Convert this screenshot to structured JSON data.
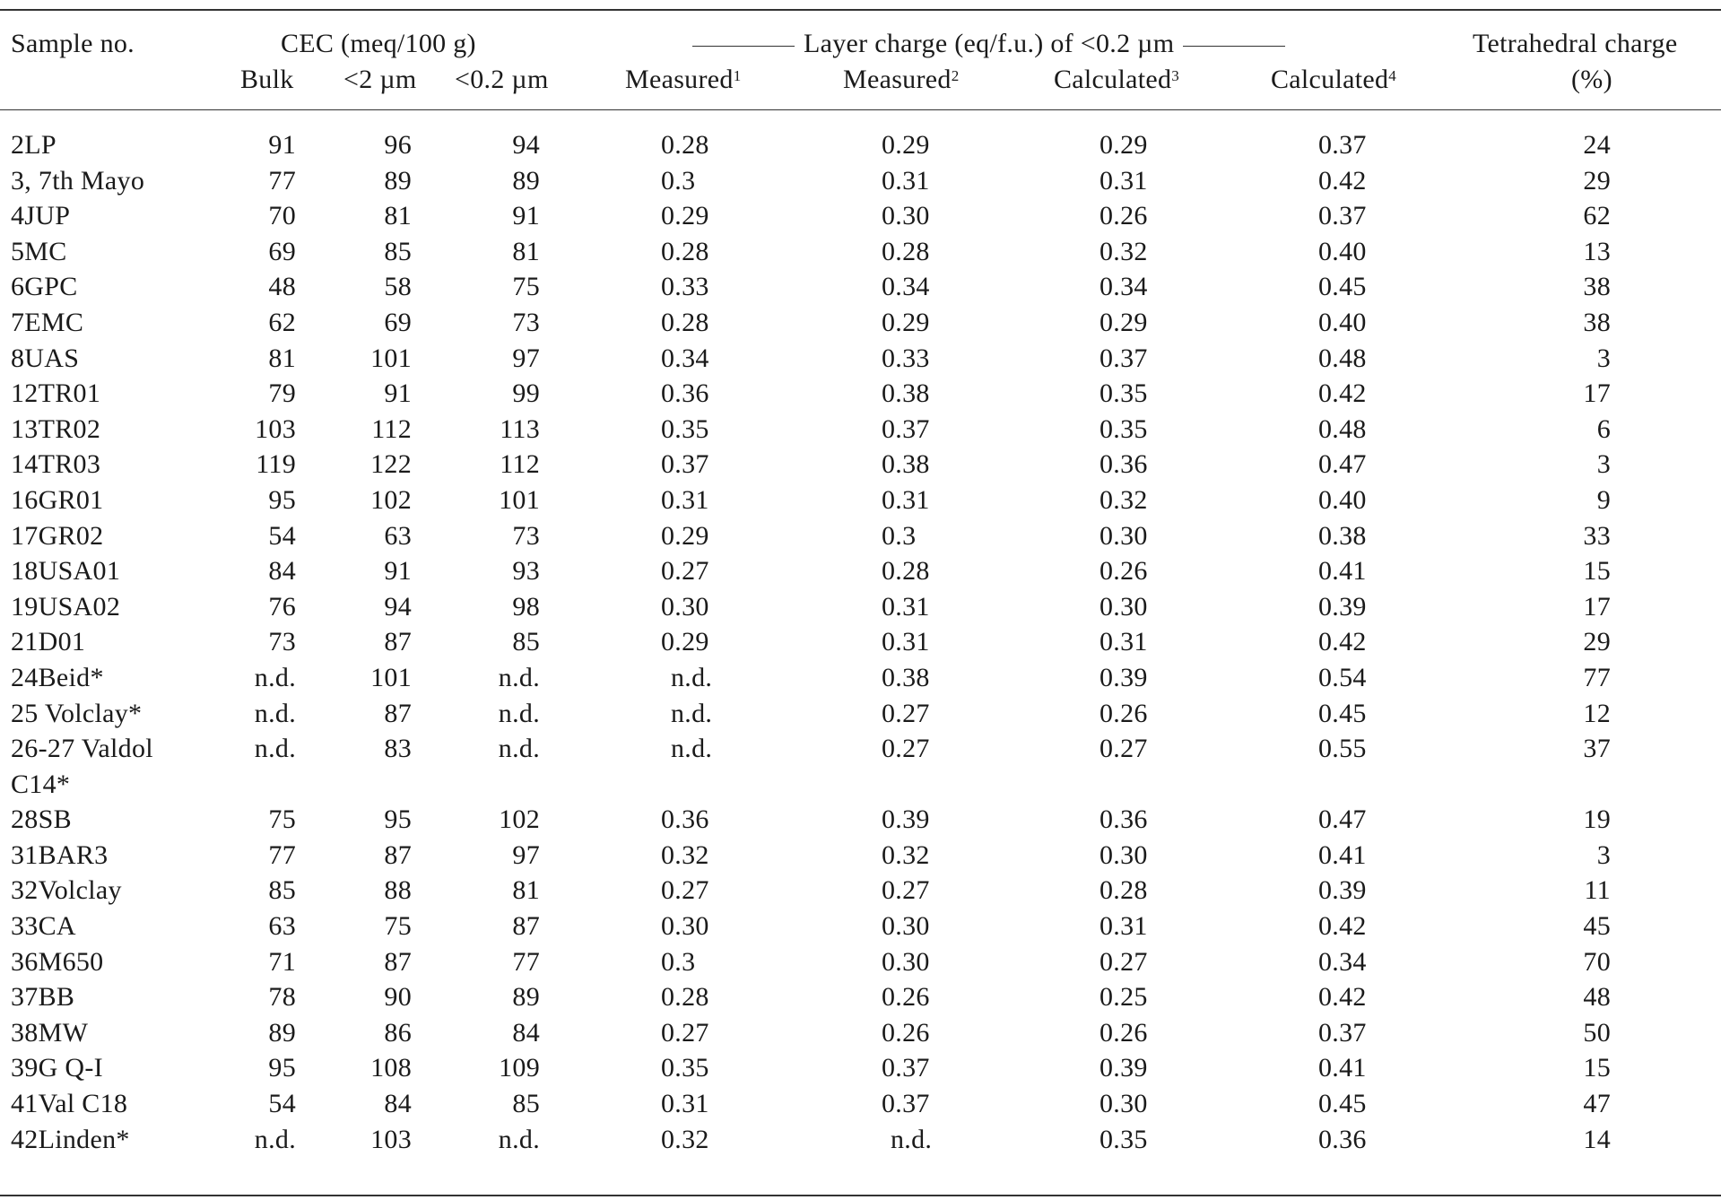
{
  "header": {
    "sample": "Sample no.",
    "cec_group": "CEC (meq/100 g)",
    "bulk": "Bulk",
    "lt2": "<2 µm",
    "lt02": "<0.2 µm",
    "layer_group": "Layer charge (eq/f.u.) of <0.2 µm",
    "measured": "Measured",
    "calculated": "Calculated",
    "sup1": "1",
    "sup2": "2",
    "sup3": "3",
    "sup4": "4",
    "tet1": "Tetrahedral charge",
    "tet2": "(%)"
  },
  "rows": [
    [
      "2LP",
      "91",
      "96",
      "94",
      "0.28",
      "0.29",
      "0.29",
      "0.37",
      "24"
    ],
    [
      "3, 7th Mayo",
      "77",
      "89",
      "89",
      "0.3",
      "0.31",
      "0.31",
      "0.42",
      "29"
    ],
    [
      "4JUP",
      "70",
      "81",
      "91",
      "0.29",
      "0.30",
      "0.26",
      "0.37",
      "62"
    ],
    [
      "5MC",
      "69",
      "85",
      "81",
      "0.28",
      "0.28",
      "0.32",
      "0.40",
      "13"
    ],
    [
      "6GPC",
      "48",
      "58",
      "75",
      "0.33",
      "0.34",
      "0.34",
      "0.45",
      "38"
    ],
    [
      "7EMC",
      "62",
      "69",
      "73",
      "0.28",
      "0.29",
      "0.29",
      "0.40",
      "38"
    ],
    [
      "8UAS",
      "81",
      "101",
      "97",
      "0.34",
      "0.33",
      "0.37",
      "0.48",
      "3"
    ],
    [
      "12TR01",
      "79",
      "91",
      "99",
      "0.36",
      "0.38",
      "0.35",
      "0.42",
      "17"
    ],
    [
      "13TR02",
      "103",
      "112",
      "113",
      "0.35",
      "0.37",
      "0.35",
      "0.48",
      "6"
    ],
    [
      "14TR03",
      "119",
      "122",
      "112",
      "0.37",
      "0.38",
      "0.36",
      "0.47",
      "3"
    ],
    [
      "16GR01",
      "95",
      "102",
      "101",
      "0.31",
      "0.31",
      "0.32",
      "0.40",
      "9"
    ],
    [
      "17GR02",
      "54",
      "63",
      "73",
      "0.29",
      "0.3",
      "0.30",
      "0.38",
      "33"
    ],
    [
      "18USA01",
      "84",
      "91",
      "93",
      "0.27",
      "0.28",
      "0.26",
      "0.41",
      "15"
    ],
    [
      "19USA02",
      "76",
      "94",
      "98",
      "0.30",
      "0.31",
      "0.30",
      "0.39",
      "17"
    ],
    [
      "21D01",
      "73",
      "87",
      "85",
      "0.29",
      "0.31",
      "0.31",
      "0.42",
      "29"
    ],
    [
      "24Beid*",
      "n.d.",
      "101",
      "n.d.",
      "n.d.",
      "0.38",
      "0.39",
      "0.54",
      "77"
    ],
    [
      "25 Volclay*",
      "n.d.",
      "87",
      "n.d.",
      "n.d.",
      "0.27",
      "0.26",
      "0.45",
      "12"
    ],
    [
      "26-27 Valdol C14*",
      "n.d.",
      "83",
      "n.d.",
      "n.d.",
      "0.27",
      "0.27",
      "0.55",
      "37"
    ],
    [
      "28SB",
      "75",
      "95",
      "102",
      "0.36",
      "0.39",
      "0.36",
      "0.47",
      "19"
    ],
    [
      "31BAR3",
      "77",
      "87",
      "97",
      "0.32",
      "0.32",
      "0.30",
      "0.41",
      "3"
    ],
    [
      "32Volclay",
      "85",
      "88",
      "81",
      "0.27",
      "0.27",
      "0.28",
      "0.39",
      "11"
    ],
    [
      "33CA",
      "63",
      "75",
      "87",
      "0.30",
      "0.30",
      "0.31",
      "0.42",
      "45"
    ],
    [
      "36M650",
      "71",
      "87",
      "77",
      "0.3",
      "0.30",
      "0.27",
      "0.34",
      "70"
    ],
    [
      "37BB",
      "78",
      "90",
      "89",
      "0.28",
      "0.26",
      "0.25",
      "0.42",
      "48"
    ],
    [
      "38MW",
      "89",
      "86",
      "84",
      "0.27",
      "0.26",
      "0.26",
      "0.37",
      "50"
    ],
    [
      "39G Q-I",
      "95",
      "108",
      "109",
      "0.35",
      "0.37",
      "0.39",
      "0.41",
      "15"
    ],
    [
      "41Val C18",
      "54",
      "84",
      "85",
      "0.31",
      "0.37",
      "0.30",
      "0.45",
      "47"
    ],
    [
      "42Linden*",
      "n.d.",
      "103",
      "n.d.",
      "0.32",
      "n.d.",
      "0.35",
      "0.36",
      "14"
    ]
  ]
}
